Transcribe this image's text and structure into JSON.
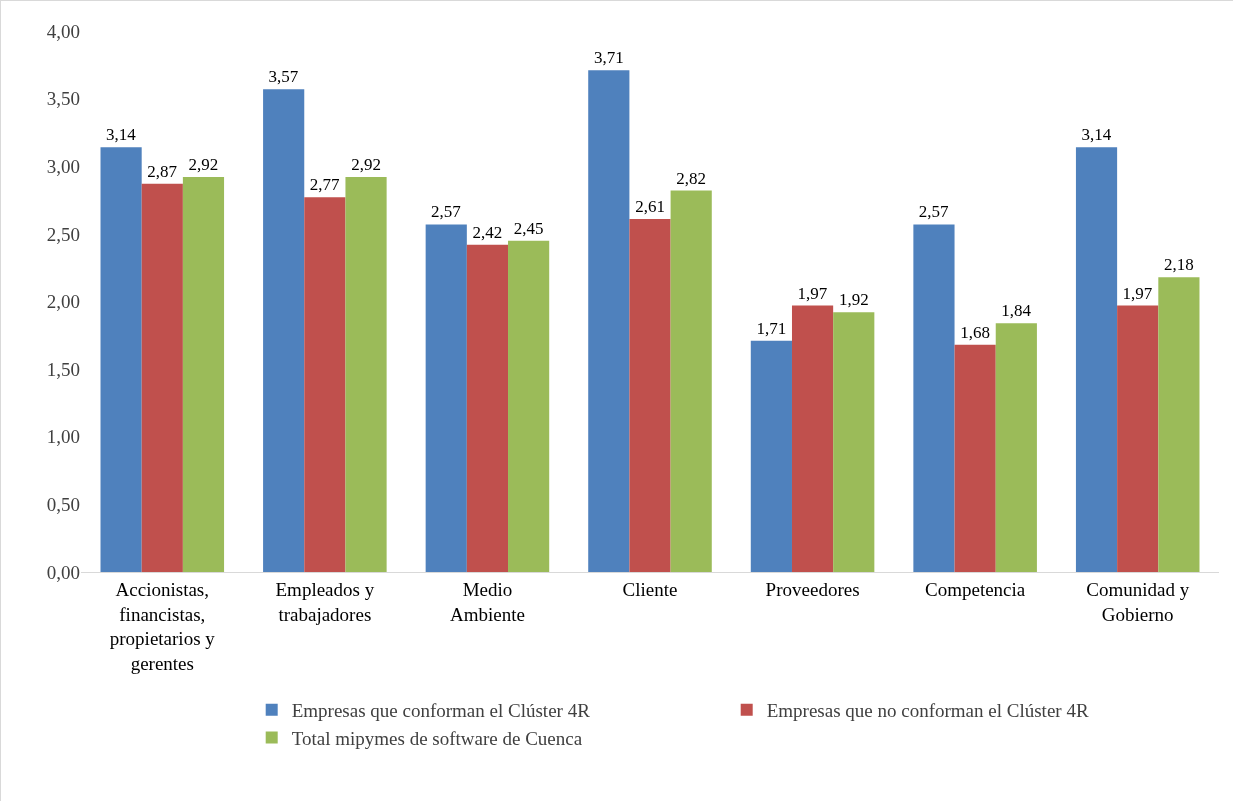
{
  "chart_data": {
    "type": "bar",
    "categories": [
      "Accionistas, financistas, propietarios y gerentes",
      "Empleados y trabajadores",
      "Medio Ambiente",
      "Cliente",
      "Proveedores",
      "Competencia",
      "Comunidad y Gobierno"
    ],
    "series": [
      {
        "name": "Empresas que conforman el Clúster 4R",
        "color": "#4f81bd",
        "values": [
          3.14,
          3.57,
          2.57,
          3.71,
          1.71,
          2.57,
          3.14
        ],
        "value_labels": [
          "3,14",
          "3,57",
          "2,57",
          "3,71",
          "1,71",
          "2,57",
          "3,14"
        ]
      },
      {
        "name": "Empresas que no conforman el Clúster 4R",
        "color": "#c0504d",
        "values": [
          2.87,
          2.77,
          2.42,
          2.61,
          1.97,
          1.68,
          1.97
        ],
        "value_labels": [
          "2,87",
          "2,77",
          "2,42",
          "2,61",
          "1,97",
          "1,68",
          "1,97"
        ]
      },
      {
        "name": "Total mipymes de software de Cuenca",
        "color": "#9bbb59",
        "values": [
          2.92,
          2.92,
          2.45,
          2.82,
          1.92,
          1.84,
          2.18
        ],
        "value_labels": [
          "2,92",
          "2,92",
          "2,45",
          "2,82",
          "1,92",
          "1,84",
          "2,18"
        ]
      }
    ],
    "ylim": [
      0,
      4
    ],
    "yticks": [
      {
        "value": 0,
        "label": "0,00"
      },
      {
        "value": 0.5,
        "label": "0,50"
      },
      {
        "value": 1,
        "label": "1,00"
      },
      {
        "value": 1.5,
        "label": "1,50"
      },
      {
        "value": 2,
        "label": "2,00"
      },
      {
        "value": 2.5,
        "label": "2,50"
      },
      {
        "value": 3,
        "label": "3,00"
      },
      {
        "value": 3.5,
        "label": "3,50"
      },
      {
        "value": 4,
        "label": "4,00"
      }
    ],
    "grid": false,
    "legend": "bottom"
  }
}
